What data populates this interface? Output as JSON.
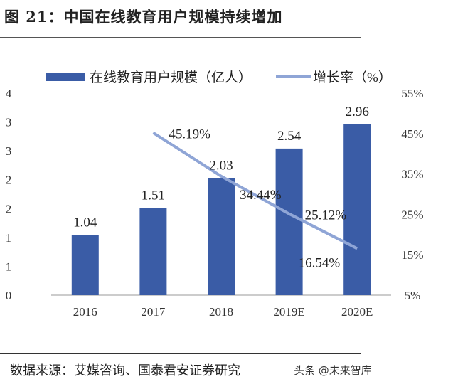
{
  "title": "图 21：中国在线教育用户规模持续增加",
  "source": "数据来源：艾媒咨询、国泰君安证券研究",
  "watermark": "头条 @未来智库",
  "colors": {
    "bar": "#3a5ca6",
    "line": "#8fa5d6"
  },
  "chart_data": {
    "type": "bar+line",
    "categories": [
      "2016",
      "2017",
      "2018",
      "2019E",
      "2020E"
    ],
    "series": [
      {
        "name": "在线教育用户规模（亿人）",
        "type": "bar",
        "axis": "left",
        "values": [
          1.04,
          1.51,
          2.03,
          2.54,
          2.96
        ],
        "labels": [
          "1.04",
          "1.51",
          "2.03",
          "2.54",
          "2.96"
        ]
      },
      {
        "name": "增长率（%）",
        "type": "line",
        "axis": "right",
        "values": [
          null,
          45.19,
          34.44,
          25.12,
          16.54
        ],
        "labels": [
          "",
          "45.19%",
          "34.44%",
          "25.12%",
          "16.54%"
        ]
      }
    ],
    "left_axis": {
      "range": [
        0,
        3.5
      ],
      "ticks": [
        0,
        0.5,
        1,
        1.5,
        2,
        2.5,
        3,
        3.5
      ],
      "tick_labels": [
        "0",
        "1",
        "1",
        "2",
        "2",
        "3",
        "3",
        "4"
      ]
    },
    "right_axis": {
      "range": [
        5,
        55
      ],
      "ticks": [
        5,
        15,
        25,
        35,
        45,
        55
      ],
      "tick_labels": [
        "5%",
        "15%",
        "25%",
        "35%",
        "45%",
        "55%"
      ]
    },
    "grid": false,
    "legend": "top"
  }
}
